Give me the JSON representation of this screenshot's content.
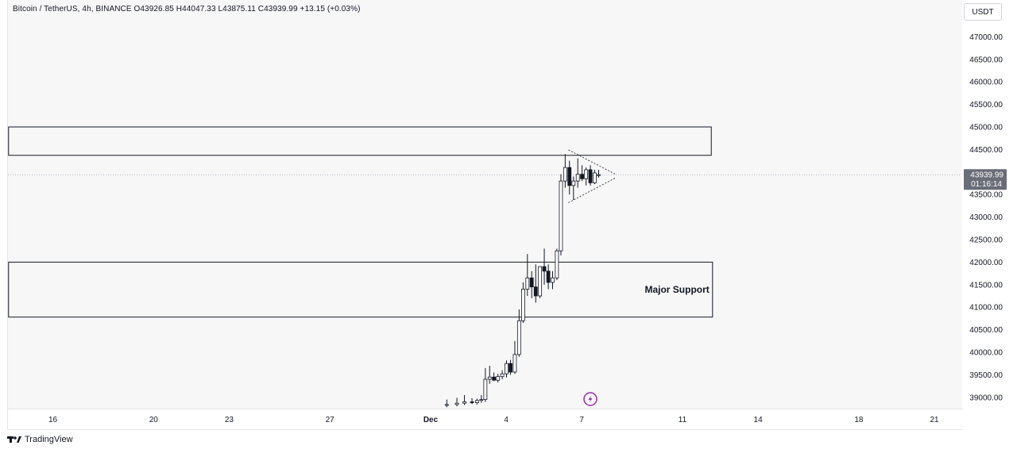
{
  "header": {
    "legend": "Bitcoin / TetherUS, 4h, BINANCE  O43926.85  H44047.33  L43875.11  C43939.99  +13.15 (+0.03%)",
    "currency": "USDT"
  },
  "footer": {
    "brand": "TradingView"
  },
  "chart_data": {
    "type": "candlestick",
    "symbol": "Bitcoin / TetherUS",
    "interval": "4h",
    "exchange": "BINANCE",
    "last_bar": {
      "open": 43926.85,
      "high": 44047.33,
      "low": 43875.11,
      "close": 43939.99,
      "change": 13.15,
      "change_pct": 0.03
    },
    "ylim": [
      38800,
      47300
    ],
    "y_ticks": [
      "47000.00",
      "46500.00",
      "46000.00",
      "45500.00",
      "45000.00",
      "44500.00",
      "43500.00",
      "43000.00",
      "42500.00",
      "42000.00",
      "41500.00",
      "41000.00",
      "40500.00",
      "40000.00",
      "39500.00",
      "39000.00"
    ],
    "price_label": {
      "price": "43939.99",
      "countdown": "01:16:14"
    },
    "x_ticks": [
      {
        "label": "16",
        "t": -2
      },
      {
        "label": "20",
        "t": 2
      },
      {
        "label": "23",
        "t": 5
      },
      {
        "label": "27",
        "t": 9
      },
      {
        "label": "Dec",
        "t": 13
      },
      {
        "label": "4",
        "t": 16
      },
      {
        "label": "7",
        "t": 19
      },
      {
        "label": "11",
        "t": 23
      },
      {
        "label": "14",
        "t": 26
      },
      {
        "label": "18",
        "t": 30
      },
      {
        "label": "21",
        "t": 33
      }
    ],
    "candles": [
      {
        "t": 13.8,
        "o": 38820,
        "h": 38950,
        "l": 38780,
        "c": 38840
      },
      {
        "t": 14.2,
        "o": 38840,
        "h": 38990,
        "l": 38800,
        "c": 38870
      },
      {
        "t": 14.5,
        "o": 38870,
        "h": 39050,
        "l": 38830,
        "c": 38900
      },
      {
        "t": 14.8,
        "o": 38900,
        "h": 38980,
        "l": 38850,
        "c": 38880
      },
      {
        "t": 15.0,
        "o": 38880,
        "h": 38970,
        "l": 38840,
        "c": 38930
      },
      {
        "t": 15.17,
        "o": 38930,
        "h": 39050,
        "l": 38880,
        "c": 38950
      },
      {
        "t": 15.33,
        "o": 38950,
        "h": 39650,
        "l": 38900,
        "c": 39400
      },
      {
        "t": 15.5,
        "o": 39400,
        "h": 39700,
        "l": 39300,
        "c": 39450
      },
      {
        "t": 15.67,
        "o": 39450,
        "h": 39550,
        "l": 39360,
        "c": 39380
      },
      {
        "t": 15.83,
        "o": 39380,
        "h": 39520,
        "l": 39330,
        "c": 39460
      },
      {
        "t": 16.0,
        "o": 39460,
        "h": 39600,
        "l": 39400,
        "c": 39520
      },
      {
        "t": 16.17,
        "o": 39520,
        "h": 39820,
        "l": 39440,
        "c": 39750
      },
      {
        "t": 16.33,
        "o": 39750,
        "h": 39830,
        "l": 39500,
        "c": 39560
      },
      {
        "t": 16.5,
        "o": 39560,
        "h": 40250,
        "l": 39520,
        "c": 39950
      },
      {
        "t": 16.67,
        "o": 39950,
        "h": 40950,
        "l": 39900,
        "c": 40700
      },
      {
        "t": 16.83,
        "o": 40700,
        "h": 41550,
        "l": 40650,
        "c": 41400
      },
      {
        "t": 17.0,
        "o": 41400,
        "h": 42180,
        "l": 41250,
        "c": 41650
      },
      {
        "t": 17.17,
        "o": 41650,
        "h": 41800,
        "l": 41200,
        "c": 41450
      },
      {
        "t": 17.33,
        "o": 41450,
        "h": 41950,
        "l": 41100,
        "c": 41250
      },
      {
        "t": 17.5,
        "o": 41250,
        "h": 41900,
        "l": 41200,
        "c": 41900
      },
      {
        "t": 17.67,
        "o": 41900,
        "h": 42300,
        "l": 41500,
        "c": 41800
      },
      {
        "t": 17.83,
        "o": 41800,
        "h": 41950,
        "l": 41400,
        "c": 41550
      },
      {
        "t": 18.0,
        "o": 41550,
        "h": 41800,
        "l": 41400,
        "c": 41650
      },
      {
        "t": 18.17,
        "o": 41650,
        "h": 42300,
        "l": 41600,
        "c": 42250
      },
      {
        "t": 18.33,
        "o": 42250,
        "h": 43950,
        "l": 42150,
        "c": 43800
      },
      {
        "t": 18.5,
        "o": 43800,
        "h": 44400,
        "l": 43650,
        "c": 44100
      },
      {
        "t": 18.67,
        "o": 44100,
        "h": 44250,
        "l": 43500,
        "c": 43700
      },
      {
        "t": 18.83,
        "o": 43700,
        "h": 43900,
        "l": 43380,
        "c": 43800
      },
      {
        "t": 19.0,
        "o": 43800,
        "h": 44300,
        "l": 43650,
        "c": 43950
      },
      {
        "t": 19.17,
        "o": 43950,
        "h": 44150,
        "l": 43800,
        "c": 43850
      },
      {
        "t": 19.33,
        "o": 43850,
        "h": 44100,
        "l": 43700,
        "c": 44050
      },
      {
        "t": 19.5,
        "o": 44050,
        "h": 44150,
        "l": 43700,
        "c": 43760
      },
      {
        "t": 19.67,
        "o": 43760,
        "h": 44050,
        "l": 43730,
        "c": 43980
      },
      {
        "t": 19.83,
        "o": 43926.85,
        "h": 44047.33,
        "l": 43875.11,
        "c": 43939.99
      }
    ],
    "zones": [
      {
        "price_top": 45000,
        "price_bottom": 44370,
        "t_start": -3.6,
        "t_end": 24.3,
        "label": ""
      },
      {
        "price_top": 42000,
        "price_bottom": 40780,
        "t_start": -3.6,
        "t_end": 24.35,
        "label": "Major Support"
      }
    ],
    "pattern": {
      "type": "symmetrical triangle",
      "upper": [
        {
          "t": 18.63,
          "price": 44490
        },
        {
          "t": 20.5,
          "price": 43950
        }
      ],
      "lower": [
        {
          "t": 18.63,
          "price": 43320
        },
        {
          "t": 20.5,
          "price": 43870
        }
      ]
    },
    "current_price_line": 43939.99,
    "grid": false,
    "legend_position": "top-left",
    "colors": {
      "candle_body": "#131722",
      "up_fill": "#ffffff",
      "down_fill": "#131722",
      "zone_border": "#131722",
      "price_label_bg": "#6a6d78",
      "event_icon": "#9c27b0"
    }
  }
}
